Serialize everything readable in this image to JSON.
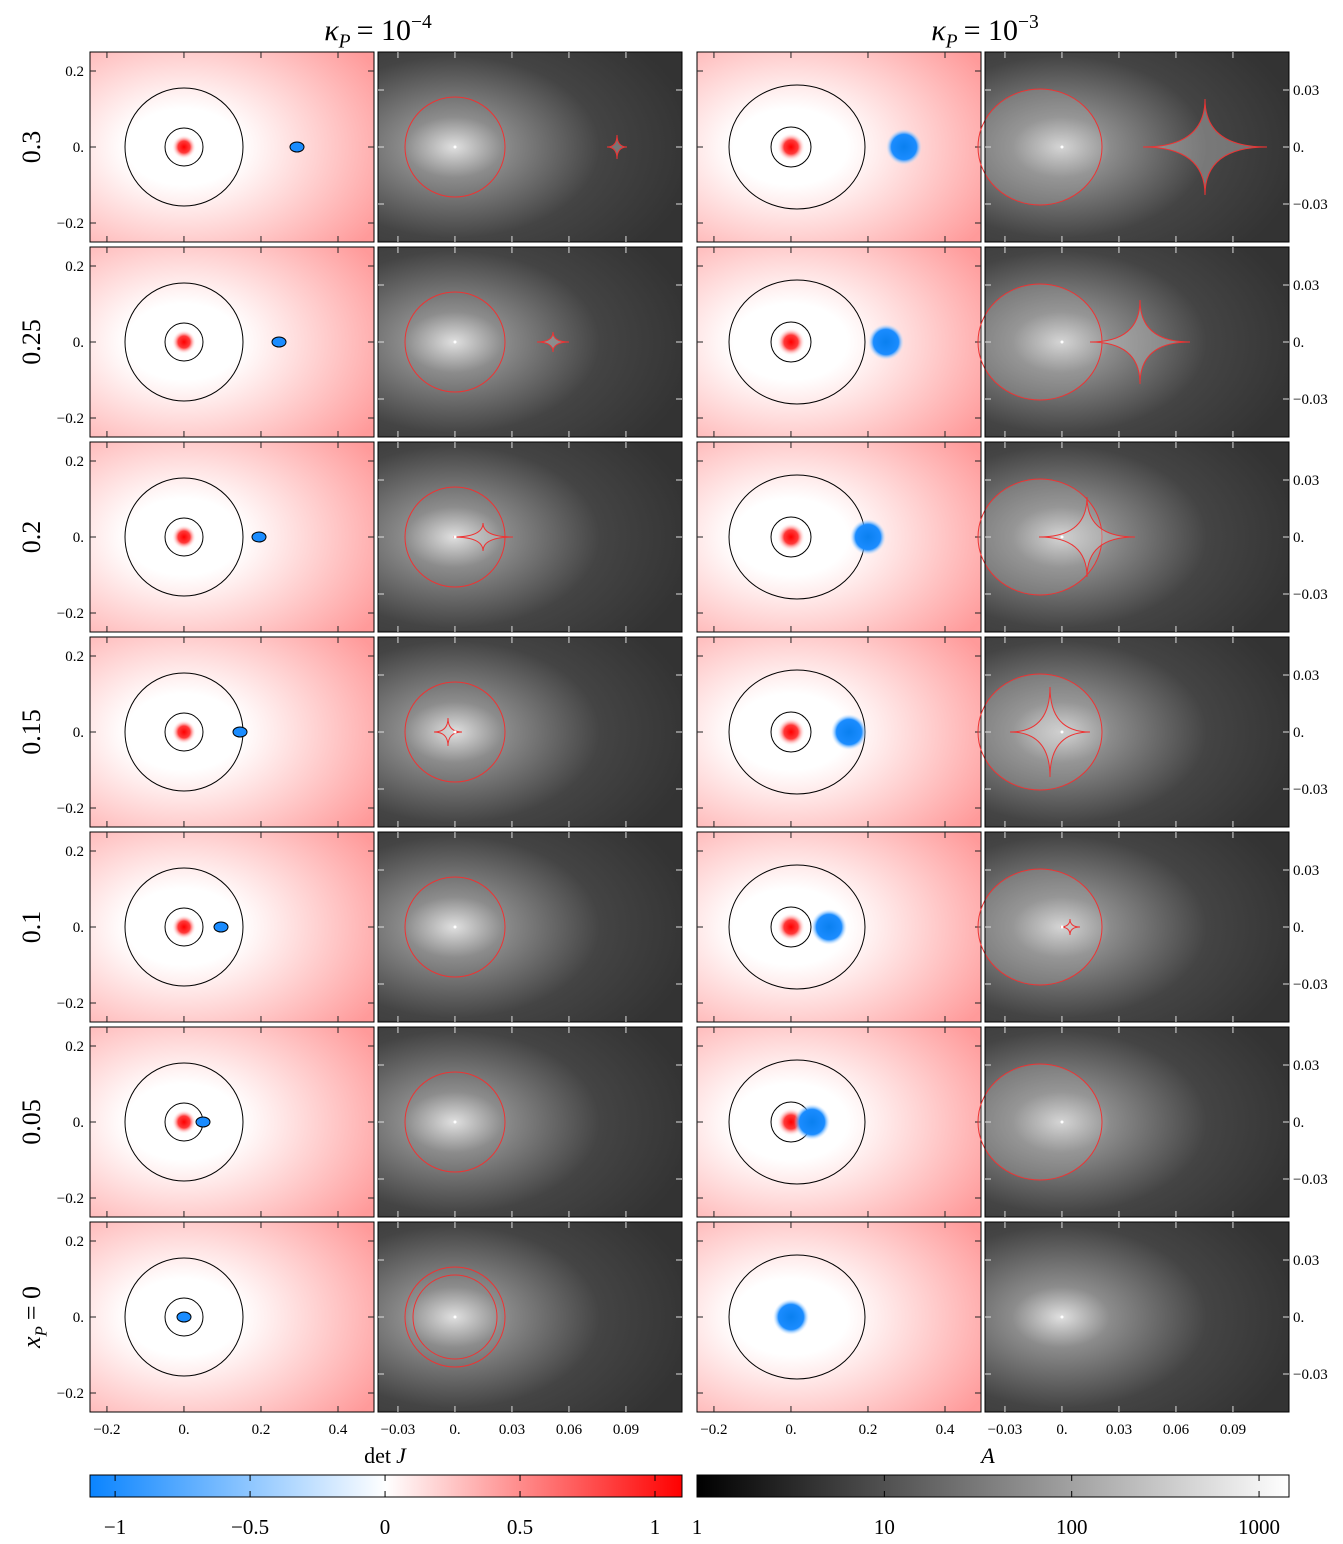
{
  "columns": [
    {
      "symbol": "κ",
      "subscript": "P",
      "relation": "= 10",
      "exponent": "−4"
    },
    {
      "symbol": "κ",
      "subscript": "P",
      "relation": "= 10",
      "exponent": "−3"
    }
  ],
  "rows": [
    {
      "label": "0.3"
    },
    {
      "label": "0.25"
    },
    {
      "label": "0.2"
    },
    {
      "label": "0.15"
    },
    {
      "label": "0.1"
    },
    {
      "label": "0.05"
    },
    {
      "symbol": "x",
      "subscript": "P",
      "relation": "= 0"
    }
  ],
  "det_axes": {
    "xlim": [
      -0.244,
      0.4935
    ],
    "ylim": [
      -0.25,
      0.25
    ],
    "xticks": [
      {
        "value": -0.2,
        "label": "−0.2"
      },
      {
        "value": 0,
        "label": "0."
      },
      0.2,
      0.4
    ],
    "yticks": [
      {
        "value": -0.2,
        "label": "−0.2"
      },
      {
        "value": 0,
        "label": "0."
      },
      0.2
    ]
  },
  "amp_axes": {
    "xlim": [
      -0.0405,
      0.1195
    ],
    "ylim": [
      -0.05,
      0.05
    ],
    "xticks": [
      {
        "value": -0.03,
        "label": "−0.03"
      },
      {
        "value": 0,
        "label": "0."
      },
      0.03,
      0.06,
      0.09
    ],
    "yticks": [
      {
        "value": -0.03,
        "label": "−0.03"
      },
      {
        "value": 0,
        "label": "0."
      },
      0.03
    ]
  },
  "colorbars": [
    {
      "function": "det",
      "variable": "J",
      "scale": "linear",
      "lim": [
        -1.093,
        1.1
      ],
      "ticks": [
        {
          "value": -1,
          "label": "−1"
        },
        {
          "value": -0.5,
          "label": "−0.5"
        },
        0,
        0.5,
        1
      ]
    },
    {
      "variable": "A",
      "scale": "log",
      "lim": [
        1,
        1445
      ],
      "ticks": [
        1,
        10,
        100,
        1000
      ]
    }
  ]
}
